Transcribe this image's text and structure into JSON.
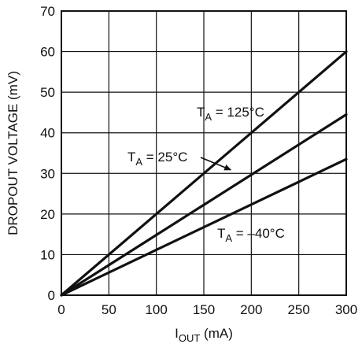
{
  "chart_data": {
    "type": "line",
    "title": "",
    "xlabel": {
      "main": "I",
      "sub": "OUT",
      "unit": " (mA)"
    },
    "ylabel": "DROPOUT VOLTAGE (mV)",
    "xlim": [
      0,
      300
    ],
    "ylim": [
      0,
      70
    ],
    "xticks": [
      "0",
      "50",
      "100",
      "150",
      "200",
      "250",
      "300"
    ],
    "yticks": [
      "0",
      "10",
      "20",
      "30",
      "40",
      "50",
      "60",
      "70"
    ],
    "grid": true,
    "line_color": "#111111",
    "series": [
      {
        "name": "T_A = 125°C",
        "x": [
          0,
          300
        ],
        "y": [
          0,
          60
        ]
      },
      {
        "name": "T_A = 25°C",
        "x": [
          0,
          300
        ],
        "y": [
          0,
          44.5
        ]
      },
      {
        "name": "T_A = –40°C",
        "x": [
          0,
          300
        ],
        "y": [
          0,
          33.5
        ]
      }
    ],
    "annotations": [
      {
        "main": "T",
        "sub": "A",
        "rest": " = 125°C",
        "series": 0
      },
      {
        "main": "T",
        "sub": "A",
        "rest": " = 25°C",
        "series": 1,
        "arrow_to": [
          180,
          30.5
        ]
      },
      {
        "main": "T",
        "sub": "A",
        "rest": " = –40°C",
        "series": 2
      }
    ]
  }
}
